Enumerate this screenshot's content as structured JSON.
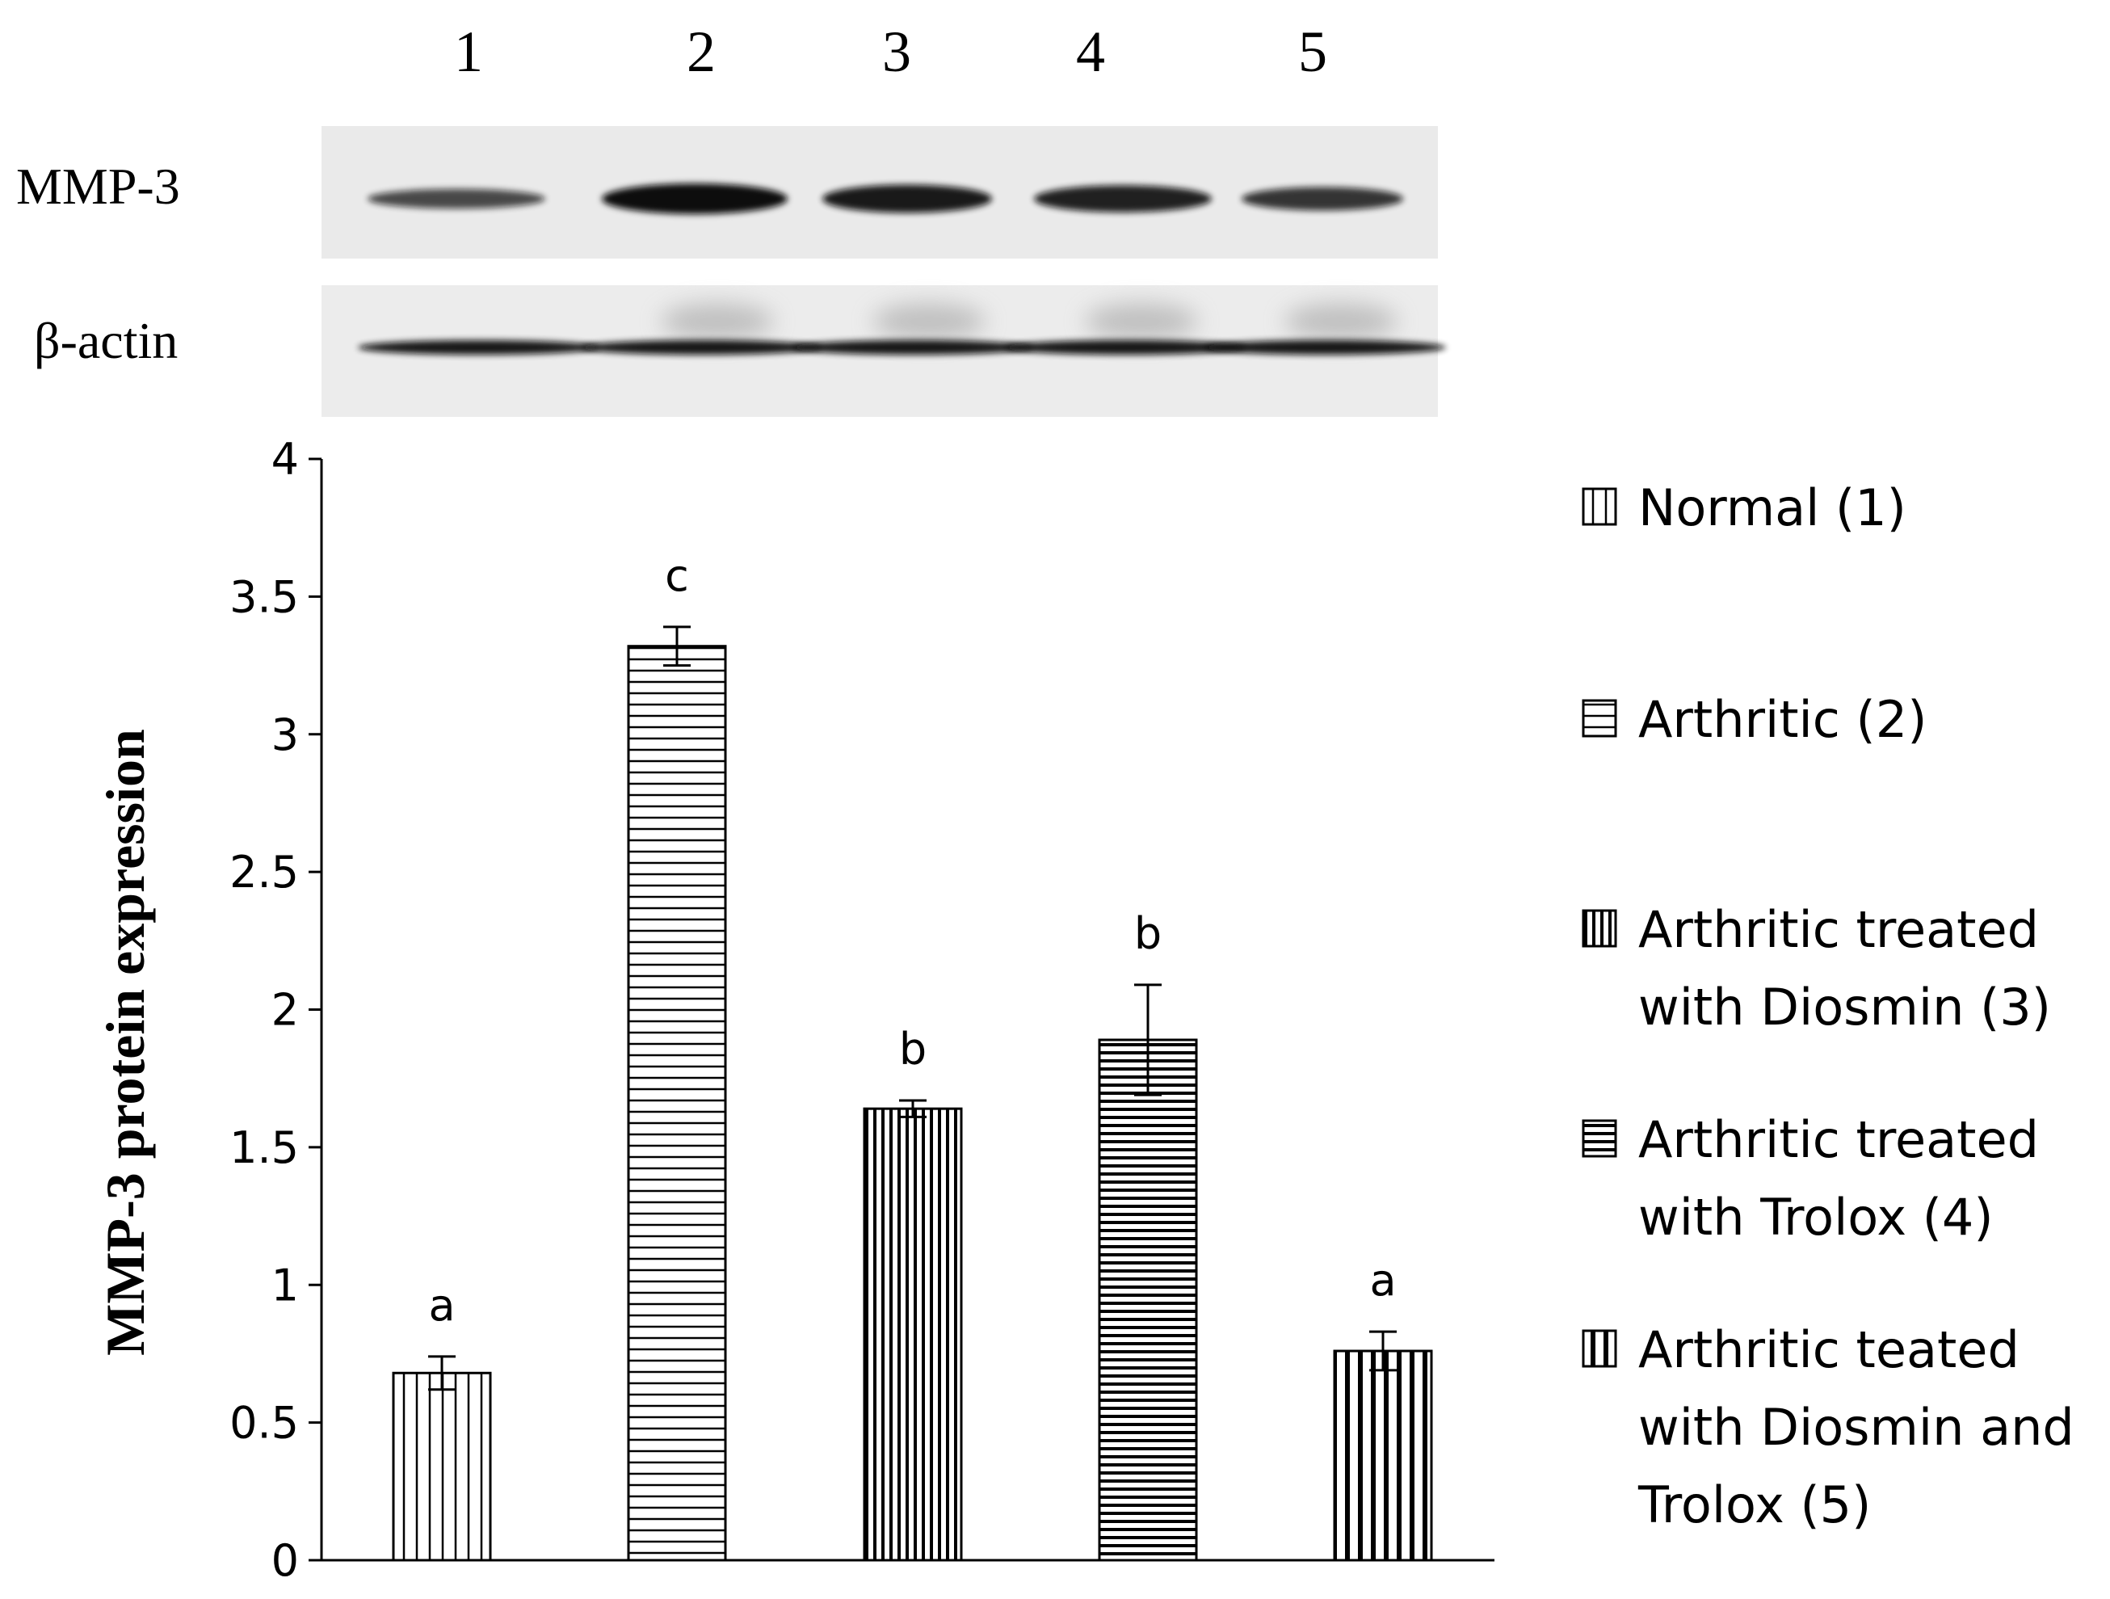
{
  "blot": {
    "lanes": [
      "1",
      "2",
      "3",
      "4",
      "5"
    ],
    "rows": [
      {
        "label": "MMP-3",
        "intensity": [
          0.55,
          1.0,
          0.9,
          0.85,
          0.7
        ]
      },
      {
        "label": "β-actin",
        "intensity": [
          0.9,
          0.9,
          0.9,
          0.9,
          0.9
        ]
      }
    ]
  },
  "chart_data": {
    "type": "bar",
    "title": "",
    "xlabel": "",
    "ylabel": "MMP-3 protein expression",
    "ylim": [
      0,
      4
    ],
    "yticks": [
      "0",
      "0.5",
      "1",
      "1.5",
      "2",
      "2.5",
      "3",
      "3.5",
      "4"
    ],
    "categories": [
      "Normal (1)",
      "Arthritic (2)",
      "Arthritic treated with Diosmin (3)",
      "Arthritic treated with Trolox (4)",
      "Arthritic teated with Diosmin and Trolox (5)"
    ],
    "values": [
      0.68,
      3.32,
      1.64,
      1.89,
      0.76
    ],
    "errors": [
      0.06,
      0.07,
      0.03,
      0.2,
      0.07
    ],
    "significance": [
      "a",
      "c",
      "b",
      "b",
      "a"
    ],
    "patterns": [
      "vertical-sparse",
      "horizontal",
      "vertical-dense",
      "horizontal-dense",
      "vertical-bold"
    ],
    "legend": {
      "position": "right",
      "items": [
        {
          "lines": [
            "Normal (1)"
          ]
        },
        {
          "lines": [
            "Arthritic (2)"
          ]
        },
        {
          "lines": [
            "Arthritic treated",
            "with Diosmin (3)"
          ]
        },
        {
          "lines": [
            "Arthritic treated",
            "with Trolox (4)"
          ]
        },
        {
          "lines": [
            "Arthritic teated",
            "with Diosmin and",
            "Trolox (5)"
          ]
        }
      ]
    }
  }
}
